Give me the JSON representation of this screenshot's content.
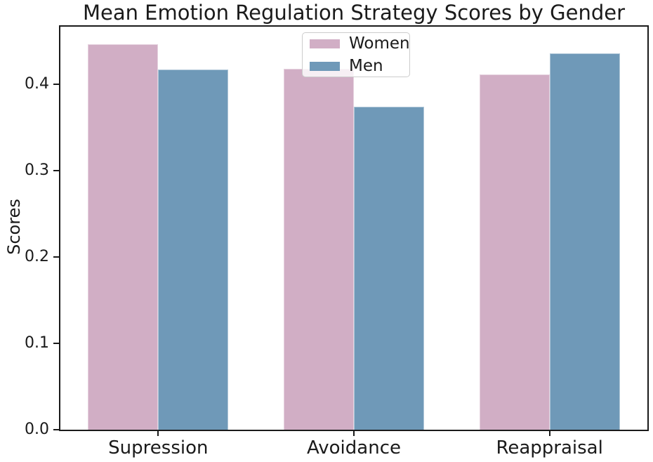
{
  "chart_data": {
    "type": "bar",
    "title": "Mean Emotion Regulation Strategy Scores by Gender",
    "xlabel": "",
    "ylabel": "Scores",
    "categories": [
      "Supression",
      "Avoidance",
      "Reappraisal"
    ],
    "series": [
      {
        "name": "Women",
        "color": "#d1aec5",
        "values": [
          0.447,
          0.418,
          0.412
        ]
      },
      {
        "name": "Men",
        "color": "#6f99b8",
        "values": [
          0.417,
          0.374,
          0.436
        ]
      }
    ],
    "ylim": [
      0,
      0.467
    ],
    "yticks": [
      0.0,
      0.1,
      0.2,
      0.3,
      0.4
    ],
    "ytick_labels": [
      "0.0",
      "0.1",
      "0.2",
      "0.3",
      "0.4"
    ],
    "grid": false,
    "legend": {
      "position": "upper center inside",
      "entries": [
        "Women",
        "Men"
      ]
    },
    "colors": {
      "women": "#d1aec5",
      "men": "#6f99b8",
      "spine": "#1a1a1a",
      "text": "#1a1a1a",
      "legend_border": "#cccccc"
    }
  }
}
